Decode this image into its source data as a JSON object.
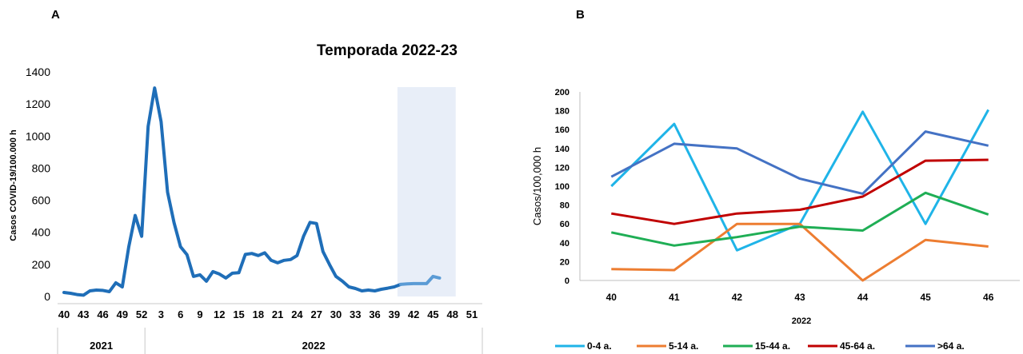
{
  "panel_labels": {
    "a": "A",
    "b": "B"
  },
  "chart_data": [
    {
      "type": "line",
      "title": "Temporada 2022-23",
      "xlabel": "",
      "ylabel": "Casos COVID-19/100.000 h",
      "ylim": [
        0,
        1400
      ],
      "yticks": [
        0,
        200,
        400,
        600,
        800,
        1000,
        1200,
        1400
      ],
      "weeks": [
        40,
        41,
        42,
        43,
        44,
        45,
        46,
        47,
        48,
        49,
        50,
        51,
        52,
        1,
        2,
        3,
        4,
        5,
        6,
        7,
        8,
        9,
        10,
        11,
        12,
        13,
        14,
        15,
        16,
        17,
        18,
        19,
        20,
        21,
        22,
        23,
        24,
        25,
        26,
        27,
        28,
        29,
        30,
        31,
        32,
        33,
        34,
        35,
        36,
        37,
        38,
        39,
        40,
        41,
        42,
        43,
        44,
        45,
        46,
        47,
        48,
        49,
        50,
        51
      ],
      "xtick_labels": [
        "40",
        "43",
        "46",
        "49",
        "52",
        "3",
        "6",
        "9",
        "12",
        "15",
        "18",
        "21",
        "24",
        "27",
        "30",
        "33",
        "36",
        "39",
        "42",
        "45",
        "48",
        "51"
      ],
      "year_labels": [
        "2021",
        "2022"
      ],
      "highlight": {
        "from_week_index": 52,
        "to_week_index": 60,
        "color": "#e8eef8"
      },
      "series": [
        {
          "color": "#1f6eb8",
          "values": [
            25,
            20,
            12,
            8,
            35,
            40,
            38,
            30,
            85,
            60,
            310,
            505,
            375,
            1060,
            1300,
            1090,
            650,
            460,
            310,
            260,
            125,
            135,
            95,
            155,
            140,
            115,
            145,
            148,
            262,
            268,
            255,
            272,
            225,
            210,
            225,
            230,
            255,
            375,
            462,
            455,
            280,
            200,
            125,
            95,
            60,
            50,
            35,
            40,
            35,
            45,
            52,
            60,
            75
          ]
        },
        {
          "color": "#5b9bd5",
          "values_from_index": 52,
          "values": [
            75,
            78,
            80,
            80,
            80,
            125,
            115
          ]
        }
      ]
    },
    {
      "type": "line",
      "title": "",
      "xlabel": "2022",
      "ylabel": "Casos/100,000 h",
      "ylim": [
        0,
        200
      ],
      "yticks": [
        0,
        20,
        40,
        60,
        80,
        100,
        120,
        140,
        160,
        180,
        200
      ],
      "categories": [
        "40",
        "41",
        "42",
        "43",
        "44",
        "45",
        "46"
      ],
      "legend_position": "bottom",
      "series": [
        {
          "name": "0-4 a.",
          "color": "#1fb4e8",
          "values": [
            100,
            166,
            32,
            60,
            179,
            60,
            181
          ]
        },
        {
          "name": "5-14 a.",
          "color": "#ed7d31",
          "values": [
            12,
            11,
            60,
            60,
            0,
            43,
            36
          ]
        },
        {
          "name": "15-44 a.",
          "color": "#1fae55",
          "values": [
            51,
            37,
            46,
            57,
            53,
            93,
            70
          ]
        },
        {
          "name": "45-64 a.",
          "color": "#c00000",
          "values": [
            71,
            60,
            71,
            75,
            89,
            127,
            128
          ]
        },
        {
          "name": ">64 a.",
          "color": "#4472c4",
          "values": [
            110,
            145,
            140,
            108,
            92,
            158,
            143
          ]
        }
      ]
    }
  ]
}
